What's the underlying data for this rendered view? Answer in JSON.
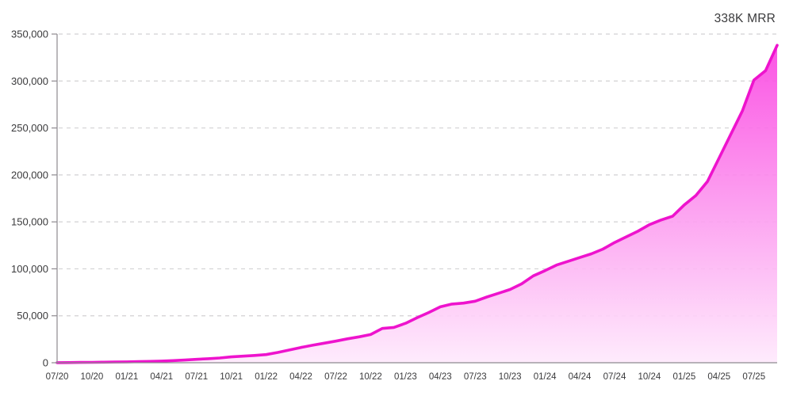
{
  "chart_data": {
    "type": "area",
    "title": "338K MRR",
    "xlabel": "",
    "ylabel": "",
    "ylim": [
      0,
      350000
    ],
    "grid": "horizontal-dashed",
    "legend": "none",
    "x_tick_labels": [
      "07/20",
      "10/20",
      "01/21",
      "04/21",
      "07/21",
      "10/21",
      "01/22",
      "04/22",
      "07/22",
      "10/22",
      "01/23",
      "04/23",
      "07/23",
      "10/23",
      "01/24",
      "04/24",
      "07/24",
      "10/24",
      "01/25",
      "04/25",
      "07/25"
    ],
    "y_tick_labels": [
      "0",
      "50,000",
      "100,000",
      "150,000",
      "200,000",
      "250,000",
      "300,000",
      "350,000"
    ],
    "y_tick_values": [
      0,
      50000,
      100000,
      150000,
      200000,
      250000,
      300000,
      350000
    ],
    "series": [
      {
        "name": "MRR",
        "months": [
          "07/20",
          "08/20",
          "09/20",
          "10/20",
          "11/20",
          "12/20",
          "01/21",
          "02/21",
          "03/21",
          "04/21",
          "05/21",
          "06/21",
          "07/21",
          "08/21",
          "09/21",
          "10/21",
          "11/21",
          "12/21",
          "01/22",
          "02/22",
          "03/22",
          "04/22",
          "05/22",
          "06/22",
          "07/22",
          "08/22",
          "09/22",
          "10/22",
          "11/22",
          "12/22",
          "01/23",
          "02/23",
          "03/23",
          "04/23",
          "05/23",
          "06/23",
          "07/23",
          "08/23",
          "09/23",
          "10/23",
          "11/23",
          "12/23",
          "01/24",
          "02/24",
          "03/24",
          "04/24",
          "05/24",
          "06/24",
          "07/24",
          "08/24",
          "09/24",
          "10/24",
          "11/24",
          "12/24",
          "01/25",
          "02/25",
          "03/25",
          "04/25",
          "05/25",
          "06/25",
          "07/25",
          "08/25",
          "09/25"
        ],
        "values": [
          100,
          200,
          300,
          450,
          600,
          800,
          950,
          1150,
          1400,
          1800,
          2300,
          2900,
          3600,
          4300,
          5100,
          6200,
          7000,
          7800,
          8700,
          11000,
          13600,
          16300,
          18600,
          20800,
          23000,
          25500,
          27600,
          30000,
          36500,
          37600,
          42000,
          48000,
          53500,
          59500,
          62500,
          63500,
          65500,
          70000,
          74000,
          78000,
          84000,
          92500,
          98000,
          104000,
          108000,
          112000,
          116000,
          121000,
          128000,
          134000,
          140000,
          147000,
          152000,
          156000,
          168000,
          178000,
          193000,
          218000,
          243000,
          268000,
          301000,
          311000,
          338000
        ]
      }
    ],
    "colors": {
      "line": "#ee13cd",
      "area_top": "#fa3ce0",
      "area_bottom": "#fee9fc",
      "grid": "#d2d1d3",
      "axis": "#8e8a90",
      "label_text": "#3a3a3c",
      "background": "#ffffff"
    }
  }
}
